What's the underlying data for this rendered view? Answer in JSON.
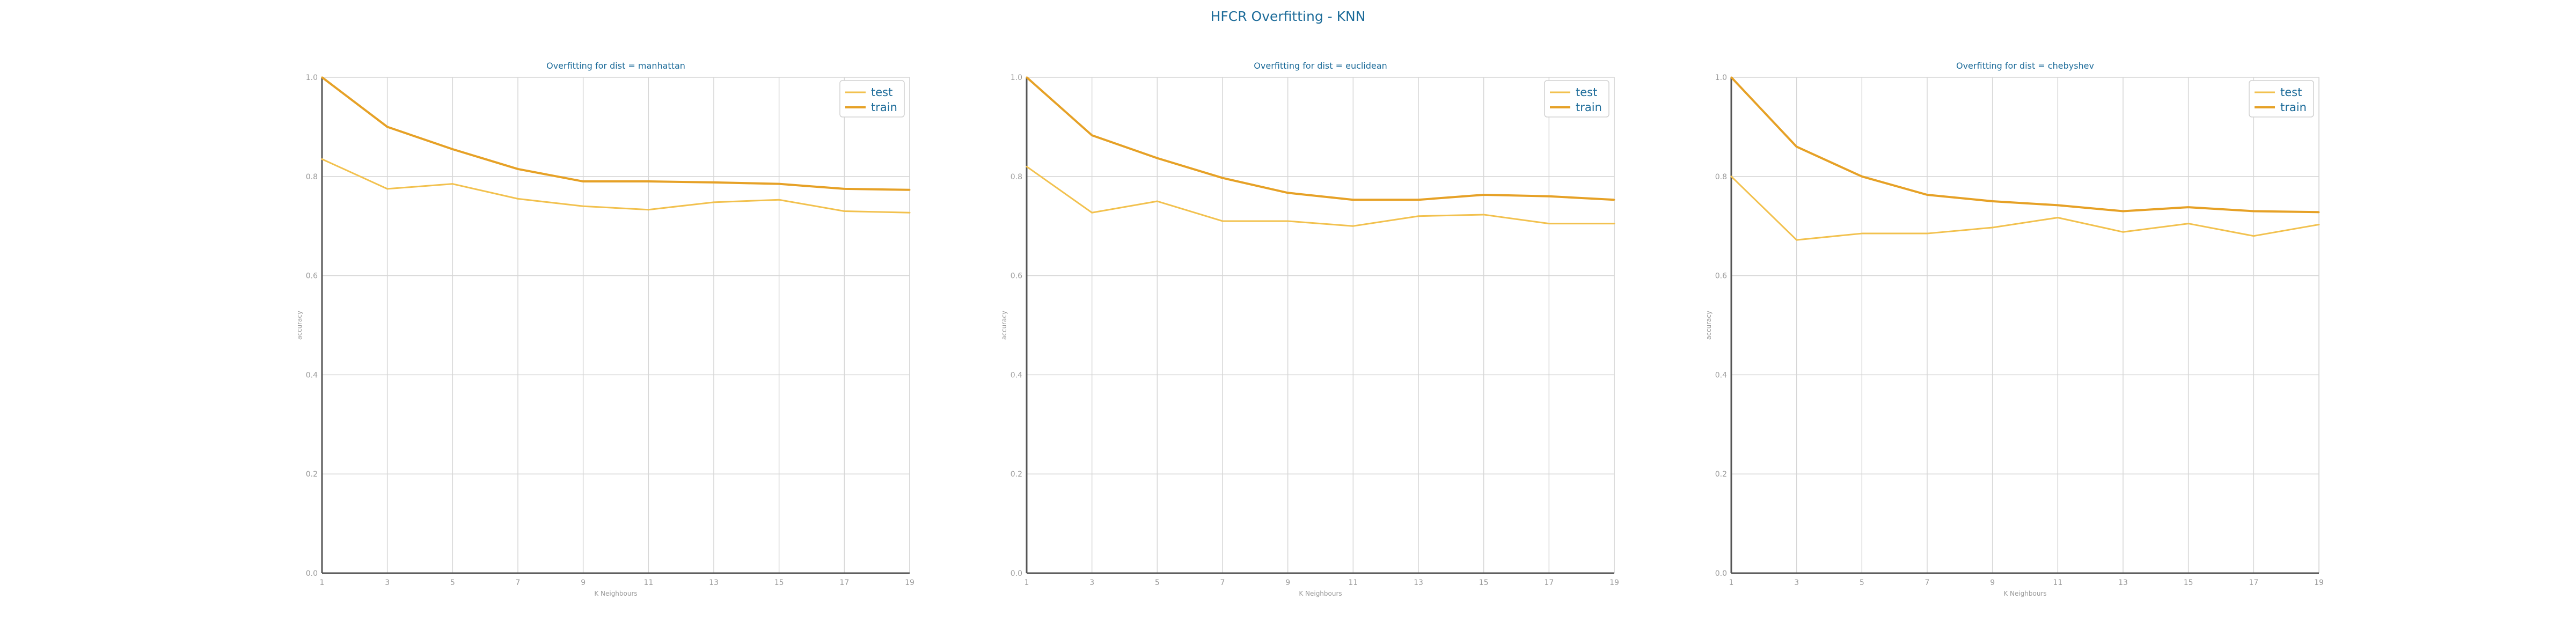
{
  "figure": {
    "suptitle": "HFCR Overfitting - KNN"
  },
  "chart_data": [
    {
      "type": "line",
      "title": "Overfitting for dist = manhattan",
      "xlabel": "K Neighbours",
      "ylabel": "accuracy",
      "x": [
        1,
        3,
        5,
        7,
        9,
        11,
        13,
        15,
        17,
        19
      ],
      "xlim": [
        1,
        19
      ],
      "ylim": [
        0.0,
        1.0
      ],
      "xticks": [
        "1",
        "3",
        "5",
        "7",
        "9",
        "11",
        "13",
        "15",
        "17",
        "19"
      ],
      "yticks": [
        "0.0",
        "0.2",
        "0.4",
        "0.6",
        "0.8",
        "1.0"
      ],
      "grid": true,
      "legend_position": "top-right",
      "series": [
        {
          "name": "test",
          "color": "#f2c14e",
          "values": [
            0.835,
            0.775,
            0.785,
            0.755,
            0.74,
            0.733,
            0.748,
            0.753,
            0.73,
            0.727
          ]
        },
        {
          "name": "train",
          "color": "#e6a126",
          "values": [
            1.0,
            0.9,
            0.855,
            0.815,
            0.79,
            0.79,
            0.788,
            0.785,
            0.775,
            0.773
          ]
        }
      ]
    },
    {
      "type": "line",
      "title": "Overfitting for dist = euclidean",
      "xlabel": "K Neighbours",
      "ylabel": "accuracy",
      "x": [
        1,
        3,
        5,
        7,
        9,
        11,
        13,
        15,
        17,
        19
      ],
      "xlim": [
        1,
        19
      ],
      "ylim": [
        0.0,
        1.0
      ],
      "xticks": [
        "1",
        "3",
        "5",
        "7",
        "9",
        "11",
        "13",
        "15",
        "17",
        "19"
      ],
      "yticks": [
        "0.0",
        "0.2",
        "0.4",
        "0.6",
        "0.8",
        "1.0"
      ],
      "grid": true,
      "legend_position": "top-right",
      "series": [
        {
          "name": "test",
          "color": "#f2c14e",
          "values": [
            0.82,
            0.727,
            0.75,
            0.71,
            0.71,
            0.7,
            0.72,
            0.723,
            0.705,
            0.705
          ]
        },
        {
          "name": "train",
          "color": "#e6a126",
          "values": [
            1.0,
            0.883,
            0.837,
            0.797,
            0.767,
            0.753,
            0.753,
            0.763,
            0.76,
            0.753
          ]
        }
      ]
    },
    {
      "type": "line",
      "title": "Overfitting for dist = chebyshev",
      "xlabel": "K Neighbours",
      "ylabel": "accuracy",
      "x": [
        1,
        3,
        5,
        7,
        9,
        11,
        13,
        15,
        17,
        19
      ],
      "xlim": [
        1,
        19
      ],
      "ylim": [
        0.0,
        1.0
      ],
      "xticks": [
        "1",
        "3",
        "5",
        "7",
        "9",
        "11",
        "13",
        "15",
        "17",
        "19"
      ],
      "yticks": [
        "0.0",
        "0.2",
        "0.4",
        "0.6",
        "0.8",
        "1.0"
      ],
      "grid": true,
      "legend_position": "top-right",
      "series": [
        {
          "name": "test",
          "color": "#f2c14e",
          "values": [
            0.8,
            0.672,
            0.685,
            0.685,
            0.697,
            0.717,
            0.688,
            0.705,
            0.68,
            0.703
          ]
        },
        {
          "name": "train",
          "color": "#e6a126",
          "values": [
            1.0,
            0.86,
            0.8,
            0.763,
            0.75,
            0.742,
            0.73,
            0.738,
            0.73,
            0.728
          ]
        }
      ]
    }
  ]
}
